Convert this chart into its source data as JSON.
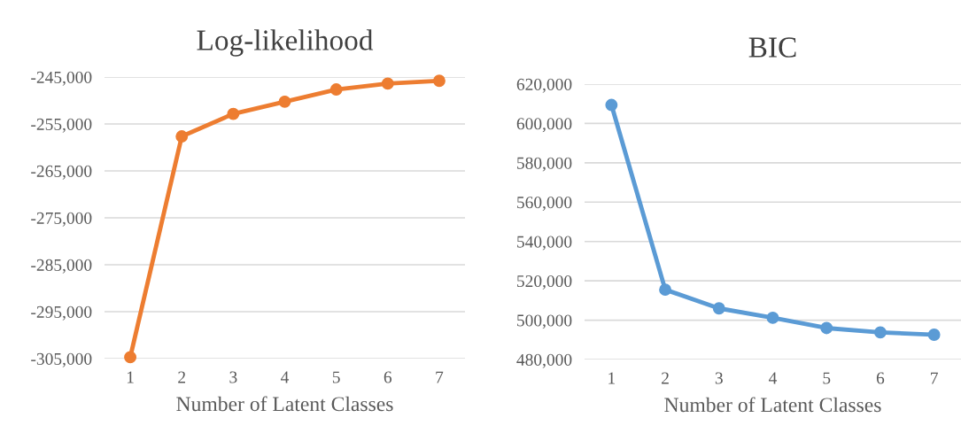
{
  "chart_data": [
    {
      "type": "line",
      "title": "Log-likelihood",
      "xlabel": "Number of Latent Classes",
      "categories": [
        "1",
        "2",
        "3",
        "4",
        "5",
        "6",
        "7"
      ],
      "series": [
        {
          "color": "#ed7d31",
          "values": [
            -304700,
            -257650,
            -252850,
            -250250,
            -247650,
            -246400,
            -245800
          ]
        }
      ],
      "ylim": [
        -305000,
        -245000
      ],
      "yticks": [
        {
          "value": -305000,
          "label": "-305,000"
        },
        {
          "value": -295000,
          "label": "-295,000"
        },
        {
          "value": -285000,
          "label": "-285,000"
        },
        {
          "value": -275000,
          "label": "-275,000"
        },
        {
          "value": -265000,
          "label": "-265,000"
        },
        {
          "value": -255000,
          "label": "-255,000"
        },
        {
          "value": -245000,
          "label": "-245,000"
        }
      ],
      "grid": "y",
      "marker": "circle",
      "line_style": "solid"
    },
    {
      "type": "line",
      "title": "BIC",
      "xlabel": "Number of Latent Classes",
      "categories": [
        "1",
        "2",
        "3",
        "4",
        "5",
        "6",
        "7"
      ],
      "series": [
        {
          "color": "#5b9bd5",
          "values": [
            609400,
            515500,
            506000,
            501200,
            496000,
            493800,
            492600
          ]
        }
      ],
      "ylim": [
        480000,
        620000
      ],
      "yticks": [
        {
          "value": 480000,
          "label": "480,000"
        },
        {
          "value": 500000,
          "label": "500,000"
        },
        {
          "value": 520000,
          "label": "520,000"
        },
        {
          "value": 540000,
          "label": "540,000"
        },
        {
          "value": 560000,
          "label": "560,000"
        },
        {
          "value": 580000,
          "label": "580,000"
        },
        {
          "value": 600000,
          "label": "600,000"
        },
        {
          "value": 620000,
          "label": "620,000"
        }
      ],
      "grid": "y",
      "marker": "circle",
      "line_style": "solid"
    }
  ]
}
